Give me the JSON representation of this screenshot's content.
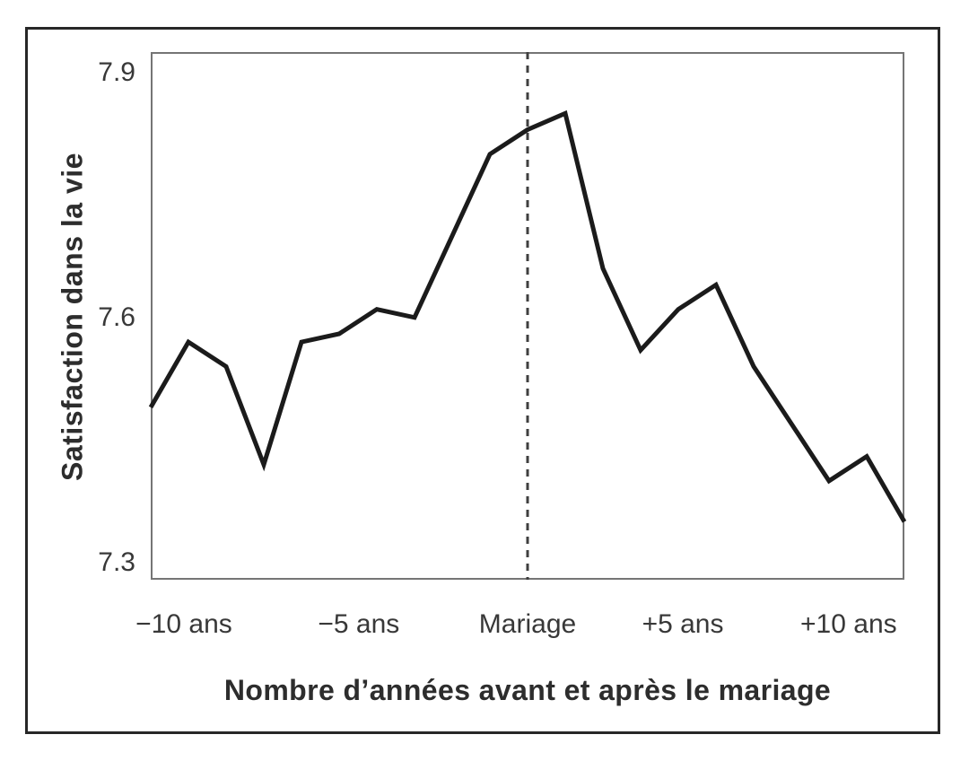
{
  "chart_data": {
    "type": "line",
    "title": "",
    "xlabel": "Nombre d’années avant et après le mariage",
    "ylabel": "Satisfaction dans la vie",
    "x": [
      -10,
      -9,
      -8,
      -7,
      -6,
      -5,
      -4,
      -3,
      -2,
      -1,
      0,
      1,
      2,
      3,
      4,
      5,
      6,
      7,
      8,
      9,
      10
    ],
    "values": [
      7.49,
      7.57,
      7.54,
      7.42,
      7.57,
      7.58,
      7.61,
      7.6,
      7.7,
      7.8,
      7.83,
      7.85,
      7.66,
      7.56,
      7.61,
      7.64,
      7.54,
      7.47,
      7.4,
      7.43,
      7.35
    ],
    "xlim": [
      -10,
      10
    ],
    "ylim": [
      7.279,
      7.925
    ],
    "yticks": [
      {
        "label": "7.9",
        "value": 7.9
      },
      {
        "label": "7.6",
        "value": 7.6
      },
      {
        "label": "7.3",
        "value": 7.3
      }
    ],
    "xticks": [
      {
        "label": "−10 ans",
        "pos": 0.044
      },
      {
        "label": "−5 ans",
        "pos": 0.276
      },
      {
        "label": "Mariage",
        "pos": 0.5
      },
      {
        "label": "+5 ans",
        "pos": 0.706
      },
      {
        "label": "+10 ans",
        "pos": 0.926
      }
    ],
    "event_line_x": 0,
    "grid": false,
    "legend": "none",
    "colors": {
      "line": "#1b1b1b",
      "frame": "#757575",
      "event_line": "#3f3f3f",
      "text": "#2d2d2d",
      "background": "#ffffff"
    }
  }
}
